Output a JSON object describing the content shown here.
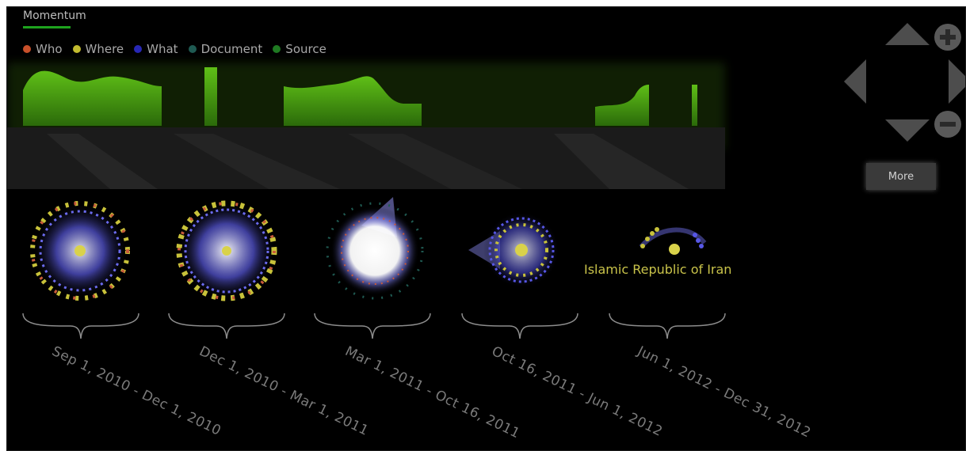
{
  "header": {
    "title": "Momentum"
  },
  "legend": [
    {
      "label": "Who",
      "color": "#c8502a"
    },
    {
      "label": "Where",
      "color": "#c2bb2f"
    },
    {
      "label": "What",
      "color": "#2727b5"
    },
    {
      "label": "Document",
      "color": "#1f5a52"
    },
    {
      "label": "Source",
      "color": "#1f7a22"
    }
  ],
  "controls": {
    "more_label": "More",
    "icons": [
      "arrow-up-icon",
      "arrow-down-icon",
      "arrow-left-icon",
      "arrow-right-icon",
      "zoom-in-icon",
      "zoom-out-icon"
    ]
  },
  "clusters": [
    {
      "range": "Sep 1, 2010 - Dec 1, 2010"
    },
    {
      "range": "Dec 1, 2010 - Mar 1, 2011"
    },
    {
      "range": "Mar 1, 2011 - Oct 16, 2011"
    },
    {
      "range": "Oct 16, 2011 - Jun 1, 2012"
    },
    {
      "range": "Jun 1, 2012 - Dec 31, 2012"
    }
  ],
  "highlight_label": "Islamic Republic of Iran",
  "colors": {
    "momentum_green": "#4ea51a",
    "accent": "#1ea31e",
    "node_blue": "#4b4be0",
    "node_yellow": "#c8c23a",
    "node_red": "#c85a3a"
  }
}
